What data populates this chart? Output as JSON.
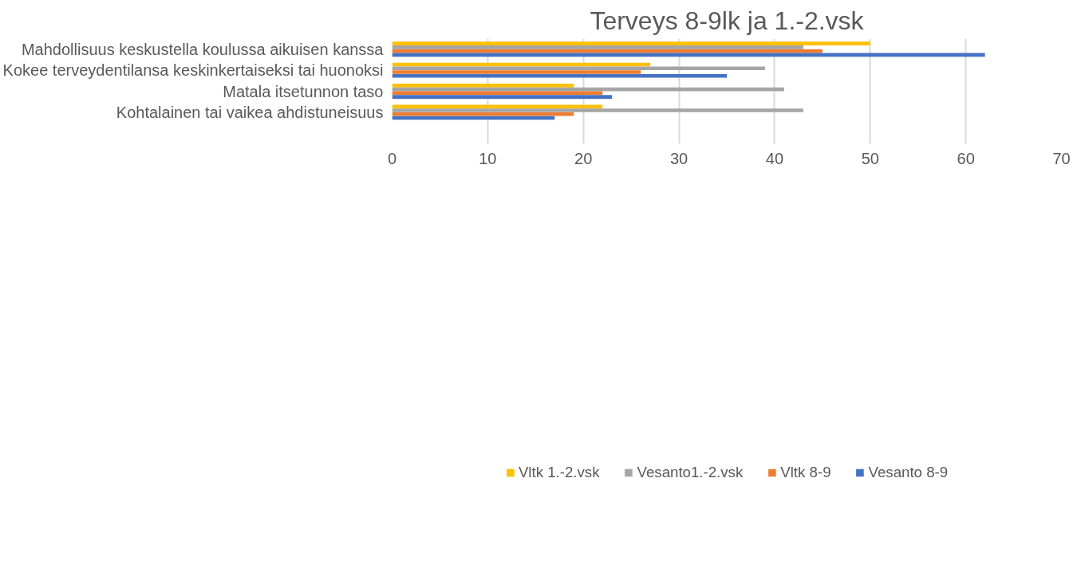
{
  "chart_data": {
    "type": "bar",
    "orientation": "horizontal",
    "title": "Terveys 8-9lk ja 1.-2.vsk",
    "categories": [
      "Mahdollisuus keskustella koulussa aikuisen kanssa",
      "Kokee terveydentilansa keskinkertaiseksi tai huonoksi",
      "Matala itsetunnon taso",
      "Kohtalainen tai vaikea ahdistuneisuus",
      null
    ],
    "series": [
      {
        "name": "Vltk 1.-2.vsk",
        "color": "#ffc000",
        "values": [
          50,
          27,
          19,
          22,
          null
        ]
      },
      {
        "name": "Vesanto1.-2.vsk",
        "color": "#a5a5a5",
        "values": [
          43,
          39,
          41,
          43,
          null
        ]
      },
      {
        "name": "Vltk 8-9",
        "color": "#ed7d31",
        "values": [
          45,
          26,
          22,
          19,
          null
        ]
      },
      {
        "name": "Vesanto 8-9",
        "color": "#4472c4",
        "values": [
          62,
          35,
          23,
          17,
          null
        ]
      }
    ],
    "xlim": [
      0,
      70
    ],
    "xticks": [
      0,
      10,
      20,
      30,
      40,
      50,
      60,
      70
    ],
    "grid": "x",
    "legend": "bottom"
  }
}
